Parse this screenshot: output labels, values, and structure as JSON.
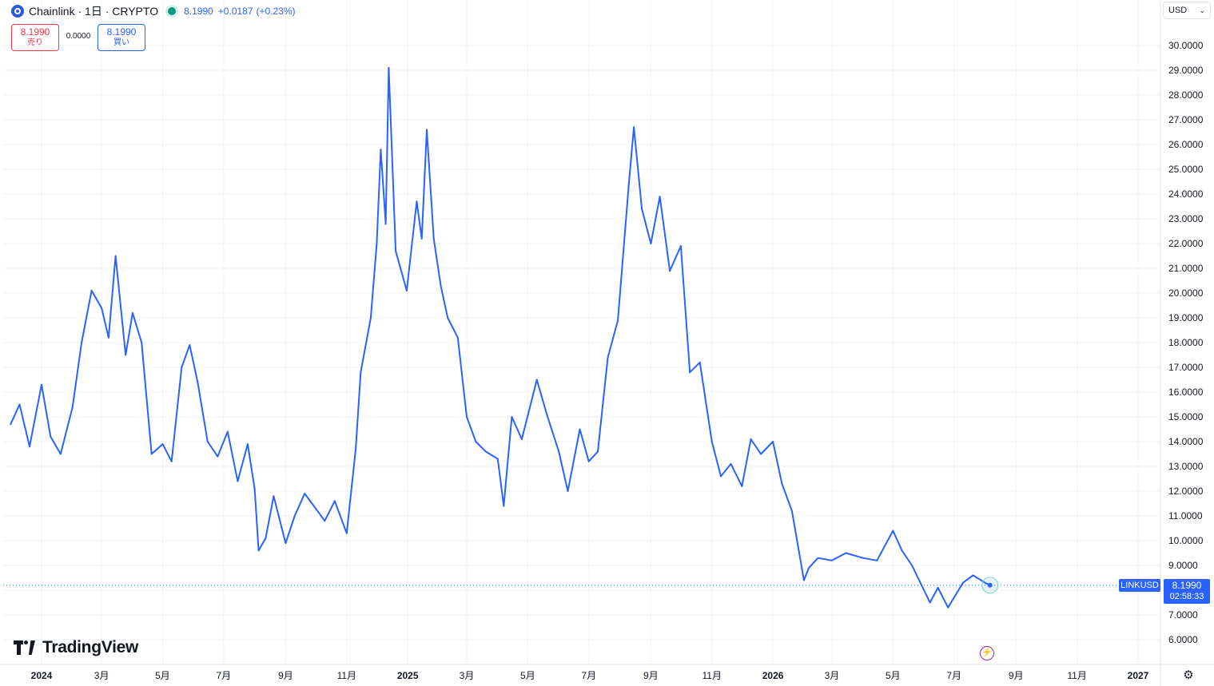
{
  "header": {
    "title": "Chainlink · 1日 · CRYPTO",
    "last": "8.1990",
    "change": "+0.0187",
    "change_pct": "(+0.23%)"
  },
  "trade": {
    "sell_price": "8.1990",
    "sell_label": "売り",
    "spread": "0.0000",
    "buy_price": "8.1990",
    "buy_label": "買い"
  },
  "currency": {
    "label": "USD"
  },
  "last_label": {
    "symbol": "LINKUSD",
    "price": "8.1990",
    "countdown": "02:58:33"
  },
  "brand": {
    "name": "TradingView"
  },
  "colors": {
    "line": "#2962ff",
    "grid": "#f0f3fa",
    "text": "#131722",
    "sell": "#f23645",
    "positive": "#089981"
  },
  "icons": {
    "settings": "gear-icon",
    "flash": "lightning-icon",
    "logo": "chainlink-logo-icon",
    "currency_chevron": "chevron-down-icon"
  },
  "chart_data": {
    "type": "line",
    "series": [
      {
        "x": [
          "2023-12-01",
          "2023-12-10",
          "2023-12-20",
          "2024-01-01",
          "2024-01-10",
          "2024-01-20",
          "2024-02-01",
          "2024-02-10",
          "2024-02-20",
          "2024-03-01",
          "2024-03-08",
          "2024-03-15",
          "2024-03-25",
          "2024-04-01",
          "2024-04-10",
          "2024-04-20",
          "2024-05-01",
          "2024-05-10",
          "2024-05-20",
          "2024-05-28",
          "2024-06-05",
          "2024-06-15",
          "2024-06-25",
          "2024-07-05",
          "2024-07-15",
          "2024-07-25",
          "2024-08-01",
          "2024-08-05",
          "2024-08-12",
          "2024-08-20",
          "2024-09-01",
          "2024-09-10",
          "2024-09-20",
          "2024-10-01",
          "2024-10-10",
          "2024-10-20",
          "2024-11-01",
          "2024-11-10",
          "2024-11-15",
          "2024-11-25",
          "2024-12-01",
          "2024-12-05",
          "2024-12-10",
          "2024-12-13",
          "2024-12-20",
          "2024-12-31",
          "2025-01-10",
          "2025-01-15",
          "2025-01-20",
          "2025-01-27",
          "2025-02-03",
          "2025-02-10",
          "2025-02-20",
          "2025-03-01",
          "2025-03-10",
          "2025-03-20",
          "2025-04-01",
          "2025-04-07",
          "2025-04-15",
          "2025-04-25",
          "2025-05-10",
          "2025-05-20",
          "2025-06-01",
          "2025-06-10",
          "2025-06-22",
          "2025-07-01",
          "2025-07-10",
          "2025-07-20",
          "2025-07-30",
          "2025-08-10",
          "2025-08-15",
          "2025-08-23",
          "2025-09-01",
          "2025-09-10",
          "2025-09-20",
          "2025-10-01",
          "2025-10-10",
          "2025-10-20",
          "2025-11-01",
          "2025-11-10",
          "2025-11-20",
          "2025-12-01",
          "2025-12-10",
          "2025-12-20",
          "2026-01-01",
          "2026-01-10",
          "2026-01-20",
          "2026-02-01",
          "2026-02-06",
          "2026-02-15",
          "2026-03-01",
          "2026-03-15",
          "2026-04-01",
          "2026-04-15",
          "2026-05-01",
          "2026-05-10",
          "2026-05-20",
          "2026-06-01",
          "2026-06-07",
          "2026-06-15",
          "2026-06-25",
          "2026-07-01",
          "2026-07-10",
          "2026-07-20",
          "2026-08-01",
          "2026-08-06"
        ],
        "y": [
          14.7,
          15.5,
          13.8,
          16.3,
          14.2,
          13.5,
          15.4,
          18.0,
          20.1,
          19.4,
          18.2,
          21.5,
          17.5,
          19.2,
          18.0,
          13.5,
          13.9,
          13.2,
          17.0,
          17.9,
          16.4,
          14.0,
          13.4,
          14.4,
          12.4,
          13.9,
          12.1,
          9.6,
          10.1,
          11.8,
          9.9,
          11.0,
          11.9,
          11.3,
          10.8,
          11.6,
          10.3,
          13.7,
          16.8,
          19.0,
          22.0,
          25.8,
          22.8,
          29.1,
          21.7,
          20.1,
          23.7,
          22.2,
          26.6,
          22.2,
          20.3,
          19.0,
          18.2,
          15.0,
          14.0,
          13.6,
          13.3,
          11.4,
          15.0,
          14.1,
          16.5,
          15.1,
          13.6,
          12.0,
          14.5,
          13.2,
          13.6,
          17.4,
          18.9,
          24.4,
          26.7,
          23.4,
          22.0,
          23.9,
          20.9,
          21.9,
          16.8,
          17.2,
          14.0,
          12.6,
          13.1,
          12.2,
          14.1,
          13.5,
          14.0,
          12.3,
          11.2,
          8.4,
          8.9,
          9.3,
          9.2,
          9.5,
          9.3,
          9.2,
          10.4,
          9.6,
          9.0,
          8.0,
          7.5,
          8.1,
          7.3,
          7.7,
          8.3,
          8.6,
          8.3,
          8.2
        ]
      }
    ],
    "xticks": [
      "2024",
      "3月",
      "5月",
      "7月",
      "9月",
      "11月",
      "2025",
      "3月",
      "5月",
      "7月",
      "9月",
      "11月",
      "2026",
      "3月",
      "5月",
      "7月",
      "9月",
      "11月",
      "2027"
    ],
    "yticks": [
      "6.0000",
      "7.0000",
      "8.0000",
      "9.0000",
      "10.0000",
      "11.0000",
      "12.0000",
      "13.0000",
      "14.0000",
      "15.0000",
      "16.0000",
      "17.0000",
      "18.0000",
      "19.0000",
      "20.0000",
      "21.0000",
      "22.0000",
      "23.0000",
      "24.0000",
      "25.0000",
      "26.0000",
      "27.0000",
      "28.0000",
      "29.0000",
      "30.0000"
    ],
    "last_value": 8.199,
    "grid": true
  }
}
